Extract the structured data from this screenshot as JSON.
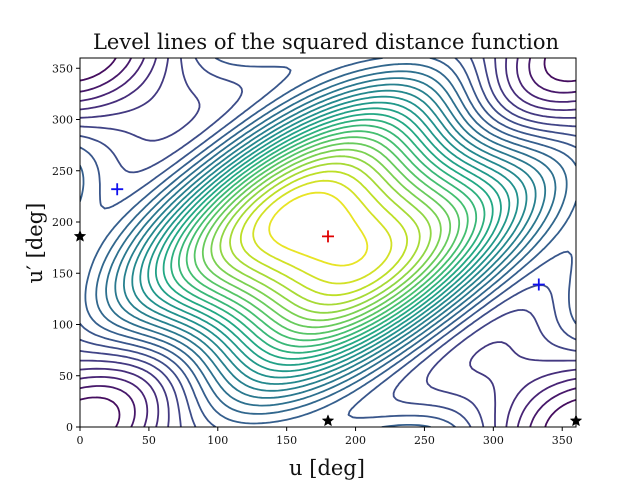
{
  "chart_data": {
    "type": "contour",
    "title": "Level lines of the squared distance function",
    "xlabel": "u [deg]",
    "ylabel": "u′ [deg]",
    "xlim": [
      0,
      360
    ],
    "ylim": [
      0,
      360
    ],
    "xticks": [
      0,
      50,
      100,
      150,
      200,
      250,
      300,
      350
    ],
    "yticks": [
      0,
      50,
      100,
      150,
      200,
      250,
      300,
      350
    ],
    "grid": false,
    "colormap": "viridis",
    "level_count": 30,
    "markers": [
      {
        "name": "maximum",
        "symbol": "plus",
        "color": "#e00000",
        "x": 180,
        "y": 186
      },
      {
        "name": "saddle",
        "symbol": "plus",
        "color": "#1010ee",
        "x": 27,
        "y": 232
      },
      {
        "name": "saddle",
        "symbol": "plus",
        "color": "#1010ee",
        "x": 333,
        "y": 139
      },
      {
        "name": "minimum",
        "symbol": "star",
        "color": "#000000",
        "x": 0,
        "y": 186
      },
      {
        "name": "minimum",
        "symbol": "star",
        "color": "#000000",
        "x": 180,
        "y": 6
      },
      {
        "name": "minimum",
        "symbol": "star",
        "color": "#000000",
        "x": 360,
        "y": 6
      }
    ]
  }
}
